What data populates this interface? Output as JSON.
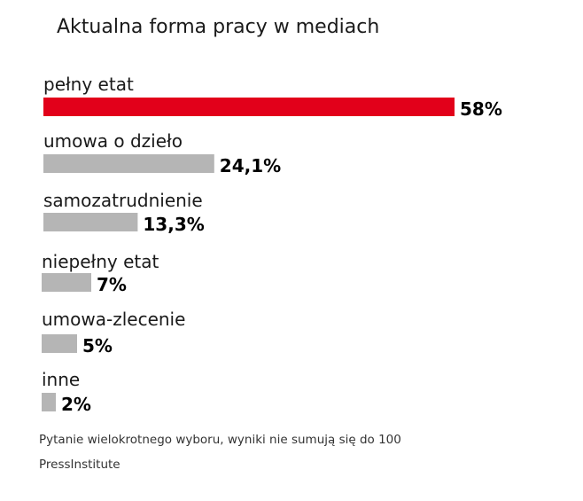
{
  "chart_data": {
    "type": "bar",
    "orientation": "horizontal",
    "title": "Aktualna forma pracy w mediach",
    "categories": [
      "pełny etat",
      "umowa o dzieło",
      "samozatrudnienie",
      "niepełny etat",
      "umowa-zlecenie",
      "inne"
    ],
    "values": [
      58,
      24.1,
      13.3,
      7,
      5,
      2
    ],
    "value_labels": [
      "58%",
      "24,1%",
      "13,3%",
      "7%",
      "5%",
      "2%"
    ],
    "bar_colors": [
      "#e2001a",
      "#b5b5b5",
      "#b5b5b5",
      "#b5b5b5",
      "#b5b5b5",
      "#b5b5b5"
    ],
    "label_color": "#000000",
    "legend": "none",
    "grid": false
  },
  "footnote": "Pytanie wielokrotnego wyboru, wyniki nie sumują się do 100",
  "source": "PressInstitute"
}
